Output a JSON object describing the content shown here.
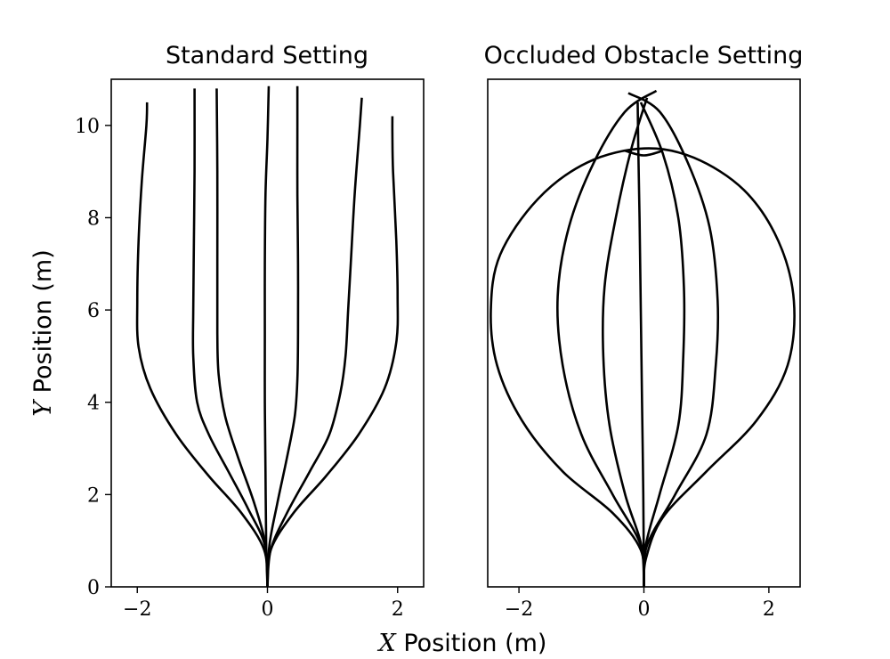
{
  "figure": {
    "xlabel_var": "X",
    "xlabel_rest": " Position (m)",
    "ylabel_var": "Y",
    "ylabel_rest": " Position (m)"
  },
  "chart_data": [
    {
      "type": "line",
      "title": "Standard Setting",
      "xlim": [
        -2.4,
        2.4
      ],
      "ylim": [
        0,
        11
      ],
      "xticks": [
        -2,
        0,
        2
      ],
      "yticks": [
        0,
        2,
        4,
        6,
        8,
        10
      ],
      "xtick_labels": [
        "−2",
        "0",
        "2"
      ],
      "ytick_labels": [
        "0",
        "2",
        "4",
        "6",
        "8",
        "10"
      ],
      "grid": false,
      "color": "#000000",
      "series": [
        {
          "points": [
            [
              0,
              0
            ],
            [
              -0.05,
              0.8
            ],
            [
              -0.4,
              1.6
            ],
            [
              -0.9,
              2.4
            ],
            [
              -1.4,
              3.3
            ],
            [
              -1.8,
              4.3
            ],
            [
              -1.98,
              5.2
            ],
            [
              -2.0,
              6.2
            ],
            [
              -1.98,
              7.5
            ],
            [
              -1.93,
              8.8
            ],
            [
              -1.86,
              10.0
            ],
            [
              -1.85,
              10.5
            ]
          ]
        },
        {
          "points": [
            [
              0,
              0
            ],
            [
              -0.04,
              0.9
            ],
            [
              -0.3,
              1.7
            ],
            [
              -0.6,
              2.5
            ],
            [
              -0.9,
              3.3
            ],
            [
              -1.08,
              4.0
            ],
            [
              -1.14,
              5.0
            ],
            [
              -1.14,
              6.0
            ],
            [
              -1.13,
              7.5
            ],
            [
              -1.12,
              9.0
            ],
            [
              -1.12,
              10.8
            ]
          ]
        },
        {
          "points": [
            [
              0,
              0
            ],
            [
              -0.03,
              0.9
            ],
            [
              -0.2,
              1.8
            ],
            [
              -0.45,
              2.8
            ],
            [
              -0.65,
              3.7
            ],
            [
              -0.75,
              4.6
            ],
            [
              -0.77,
              5.5
            ],
            [
              -0.77,
              7.0
            ],
            [
              -0.77,
              9.0
            ],
            [
              -0.78,
              10.8
            ]
          ]
        },
        {
          "points": [
            [
              0,
              0
            ],
            [
              -0.02,
              1.0
            ],
            [
              -0.03,
              2.5
            ],
            [
              -0.04,
              4.0
            ],
            [
              -0.04,
              5.5
            ],
            [
              -0.04,
              7.0
            ],
            [
              -0.03,
              8.5
            ],
            [
              0.0,
              9.7
            ],
            [
              0.02,
              10.85
            ]
          ]
        },
        {
          "points": [
            [
              0,
              0
            ],
            [
              0.03,
              0.9
            ],
            [
              0.15,
              1.8
            ],
            [
              0.3,
              2.8
            ],
            [
              0.42,
              3.7
            ],
            [
              0.46,
              4.5
            ],
            [
              0.47,
              5.5
            ],
            [
              0.47,
              7.0
            ],
            [
              0.46,
              8.5
            ],
            [
              0.46,
              10.0
            ],
            [
              0.46,
              10.85
            ]
          ]
        },
        {
          "points": [
            [
              0,
              0
            ],
            [
              0.05,
              0.8
            ],
            [
              0.3,
              1.6
            ],
            [
              0.65,
              2.5
            ],
            [
              0.95,
              3.3
            ],
            [
              1.12,
              4.2
            ],
            [
              1.2,
              5.0
            ],
            [
              1.24,
              6.0
            ],
            [
              1.28,
              7.0
            ],
            [
              1.34,
              8.5
            ],
            [
              1.42,
              10.0
            ],
            [
              1.45,
              10.6
            ]
          ]
        },
        {
          "points": [
            [
              0,
              0
            ],
            [
              0.05,
              0.8
            ],
            [
              0.4,
              1.6
            ],
            [
              0.9,
              2.4
            ],
            [
              1.4,
              3.3
            ],
            [
              1.8,
              4.3
            ],
            [
              1.98,
              5.3
            ],
            [
              2.0,
              6.3
            ],
            [
              1.98,
              7.5
            ],
            [
              1.93,
              9.0
            ],
            [
              1.92,
              9.8
            ],
            [
              1.92,
              10.2
            ]
          ]
        }
      ]
    },
    {
      "type": "line",
      "title": "Occluded Obstacle Setting",
      "xlim": [
        -2.5,
        2.5
      ],
      "ylim": [
        0,
        11
      ],
      "xticks": [
        -2,
        0,
        2
      ],
      "yticks": [],
      "xtick_labels": [
        "−2",
        "0",
        "2"
      ],
      "grid": false,
      "color": "#000000",
      "series": [
        {
          "points": [
            [
              0,
              0
            ],
            [
              -0.05,
              0.8
            ],
            [
              -0.5,
              1.6
            ],
            [
              -1.3,
              2.5
            ],
            [
              -1.95,
              3.6
            ],
            [
              -2.35,
              4.8
            ],
            [
              -2.45,
              6.0
            ],
            [
              -2.3,
              7.2
            ],
            [
              -1.7,
              8.4
            ],
            [
              -0.9,
              9.2
            ],
            [
              0.0,
              9.5
            ],
            [
              0.8,
              9.3
            ],
            [
              1.6,
              8.6
            ],
            [
              2.15,
              7.5
            ],
            [
              2.4,
              6.2
            ],
            [
              2.3,
              4.8
            ],
            [
              1.8,
              3.6
            ],
            [
              1.0,
              2.5
            ],
            [
              0.3,
              1.5
            ],
            [
              0.03,
              0.6
            ],
            [
              0,
              0
            ]
          ]
        },
        {
          "points": [
            [
              0,
              0
            ],
            [
              -0.05,
              0.9
            ],
            [
              -0.5,
              2.0
            ],
            [
              -1.0,
              3.3
            ],
            [
              -1.3,
              4.8
            ],
            [
              -1.38,
              6.3
            ],
            [
              -1.2,
              7.8
            ],
            [
              -0.8,
              9.2
            ],
            [
              -0.3,
              10.3
            ],
            [
              0.2,
              10.75
            ]
          ]
        },
        {
          "points": [
            [
              0,
              0
            ],
            [
              0.05,
              0.9
            ],
            [
              0.5,
              2.0
            ],
            [
              1.0,
              3.3
            ],
            [
              1.15,
              4.8
            ],
            [
              1.18,
              6.2
            ],
            [
              1.05,
              7.8
            ],
            [
              0.7,
              9.2
            ],
            [
              0.25,
              10.3
            ],
            [
              -0.25,
              10.7
            ]
          ]
        },
        {
          "points": [
            [
              0,
              0
            ],
            [
              -0.04,
              0.9
            ],
            [
              -0.3,
              2.0
            ],
            [
              -0.55,
              3.5
            ],
            [
              -0.65,
              5.0
            ],
            [
              -0.63,
              6.5
            ],
            [
              -0.45,
              8.0
            ],
            [
              -0.2,
              9.5
            ],
            [
              0.05,
              10.6
            ]
          ]
        },
        {
          "points": [
            [
              0,
              0
            ],
            [
              0.03,
              0.9
            ],
            [
              0.25,
              2.0
            ],
            [
              0.55,
              3.5
            ],
            [
              0.63,
              5.0
            ],
            [
              0.64,
              6.5
            ],
            [
              0.55,
              8.0
            ],
            [
              0.3,
              9.4
            ],
            [
              -0.05,
              10.5
            ]
          ]
        },
        {
          "points": [
            [
              0,
              0
            ],
            [
              -0.01,
              2.0
            ],
            [
              -0.03,
              4.0
            ],
            [
              -0.05,
              6.0
            ],
            [
              -0.07,
              8.0
            ],
            [
              -0.09,
              9.5
            ],
            [
              -0.1,
              10.5
            ]
          ]
        },
        {
          "points": [
            [
              -0.3,
              9.45
            ],
            [
              0.0,
              9.35
            ],
            [
              0.3,
              9.45
            ]
          ]
        }
      ]
    }
  ]
}
